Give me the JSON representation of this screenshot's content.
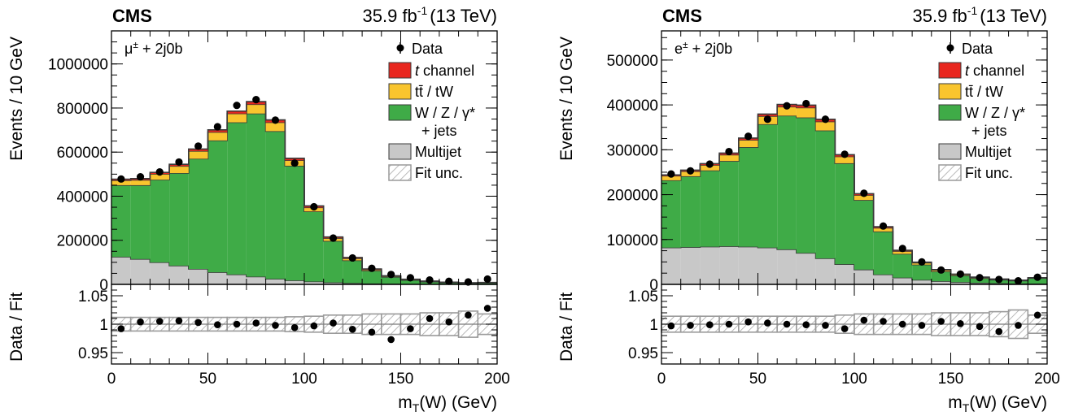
{
  "colors": {
    "data": "#000000",
    "t_channel": "#e8261e",
    "ttbar_tW": "#f9c52e",
    "wz": "#3fab47",
    "multijet": "#c8c8c8",
    "fit_unc": "#9a9a9a",
    "outline": "#3a3a3a"
  },
  "panels": [
    {
      "experiment": "CMS",
      "lumi": "35.9 fb",
      "lumi_sup": "-1",
      "energy": "(13 TeV)",
      "region_label": "μ",
      "region_sup": "±",
      "region_suffix": " + 2j0b",
      "legend": {
        "data": "Data",
        "t_channel_italic": "t",
        "t_channel_rest": " channel",
        "ttbar": "tt̄ / tW",
        "wz_line1": "W / Z / γ*",
        "wz_line2": "+ jets",
        "multijet": "Multijet",
        "fit_unc": "Fit unc."
      },
      "ylabel": "Events / 10 GeV",
      "ratio_ylabel": "Data / Fit",
      "xlabel_main": "m",
      "xlabel_sub": "T",
      "xlabel_rest": "(W) (GeV)",
      "xticks": [
        "0",
        "50",
        "100",
        "150",
        "200"
      ],
      "yticks": [
        "0",
        "200000",
        "400000",
        "600000",
        "800000",
        "1000000"
      ],
      "ratio_yticks": [
        "0.95",
        "1",
        "1.05"
      ]
    },
    {
      "experiment": "CMS",
      "lumi": "35.9 fb",
      "lumi_sup": "-1",
      "energy": "(13 TeV)",
      "region_label": "e",
      "region_sup": "±",
      "region_suffix": " + 2j0b",
      "legend": {
        "data": "Data",
        "t_channel_italic": "t",
        "t_channel_rest": " channel",
        "ttbar": "tt̄ / tW",
        "wz_line1": "W / Z / γ*",
        "wz_line2": "+ jets",
        "multijet": "Multijet",
        "fit_unc": "Fit unc."
      },
      "ylabel": "Events / 10 GeV",
      "ratio_ylabel": "Data / Fit",
      "xlabel_main": "m",
      "xlabel_sub": "T",
      "xlabel_rest": "(W) (GeV)",
      "xticks": [
        "0",
        "50",
        "100",
        "150",
        "200"
      ],
      "yticks": [
        "0",
        "100000",
        "200000",
        "300000",
        "400000",
        "500000"
      ],
      "ratio_yticks": [
        "0.95",
        "1",
        "1.05"
      ]
    }
  ],
  "chart_data": [
    {
      "type": "bar",
      "subtype": "stacked-histogram-with-ratio",
      "xlabel": "mT(W) (GeV)",
      "ylabel": "Events / 10 GeV",
      "xlim": [
        0,
        200
      ],
      "ylim": [
        0,
        1150000
      ],
      "bin_edges": [
        0,
        10,
        20,
        30,
        40,
        50,
        60,
        70,
        80,
        90,
        100,
        110,
        120,
        130,
        140,
        150,
        160,
        170,
        180,
        190,
        200
      ],
      "series": [
        {
          "name": "Multijet",
          "values": [
            125000,
            115000,
            100000,
            85000,
            70000,
            55000,
            45000,
            35000,
            25000,
            18000,
            13000,
            9000,
            6000,
            4000,
            3000,
            2000,
            1500,
            1000,
            800,
            700
          ]
        },
        {
          "name": "W / Z / γ* + jets",
          "values": [
            325000,
            335000,
            375000,
            420000,
            500000,
            598000,
            690000,
            740000,
            670000,
            520000,
            318000,
            188000,
            103000,
            58000,
            31000,
            17500,
            10500,
            6700,
            5000,
            6500
          ]
        },
        {
          "name": "tt̄ / tW",
          "values": [
            22000,
            24000,
            26000,
            32000,
            35000,
            38000,
            40000,
            42000,
            40000,
            25000,
            18000,
            13000,
            9000,
            5000,
            3000,
            2500,
            1800,
            1300,
            1000,
            900
          ]
        },
        {
          "name": "t channel",
          "values": [
            5000,
            6000,
            7000,
            8000,
            9000,
            10000,
            11000,
            12000,
            11000,
            9000,
            7000,
            5000,
            4000,
            3000,
            2000,
            1500,
            1000,
            800,
            600,
            500
          ]
        },
        {
          "name": "Data",
          "values": [
            478000,
            488000,
            510000,
            555000,
            627000,
            715000,
            812000,
            838000,
            745000,
            550000,
            352000,
            210000,
            120000,
            73000,
            45000,
            30000,
            20000,
            14000,
            11000,
            24000
          ]
        }
      ],
      "ratio": {
        "ylabel": "Data / Fit",
        "ylim": [
          0.93,
          1.07
        ],
        "values": [
          0.992,
          1.004,
          1.005,
          1.006,
          1.003,
          0.999,
          1.0,
          1.002,
          0.998,
          0.994,
          0.997,
          1.002,
          0.991,
          0.986,
          0.973,
          0.992,
          1.01,
          1.004,
          1.016,
          1.028
        ],
        "fit_unc": [
          0.012,
          0.012,
          0.012,
          0.012,
          0.012,
          0.012,
          0.012,
          0.012,
          0.012,
          0.013,
          0.014,
          0.016,
          0.016,
          0.018,
          0.018,
          0.018,
          0.02,
          0.02,
          0.023,
          0.018
        ]
      }
    },
    {
      "type": "bar",
      "subtype": "stacked-histogram-with-ratio",
      "xlabel": "mT(W) (GeV)",
      "ylabel": "Events / 10 GeV",
      "xlim": [
        0,
        200
      ],
      "ylim": [
        0,
        565000
      ],
      "bin_edges": [
        0,
        10,
        20,
        30,
        40,
        50,
        60,
        70,
        80,
        90,
        100,
        110,
        120,
        130,
        140,
        150,
        160,
        170,
        180,
        190,
        200
      ],
      "series": [
        {
          "name": "Multijet",
          "values": [
            82000,
            83000,
            84000,
            85000,
            84000,
            82000,
            78000,
            70000,
            58000,
            45000,
            33000,
            22000,
            15000,
            10000,
            7000,
            5000,
            3500,
            2500,
            2000,
            1800
          ]
        },
        {
          "name": "W / Z / γ* + jets",
          "values": [
            150000,
            158000,
            170000,
            190000,
            222000,
            275000,
            298000,
            302000,
            285000,
            225000,
            155000,
            96000,
            53000,
            34000,
            22000,
            15000,
            10500,
            7800,
            6300,
            12000
          ]
        },
        {
          "name": "tt̄ / tW",
          "values": [
            10000,
            11000,
            12000,
            14000,
            16000,
            18000,
            20000,
            22000,
            20000,
            15000,
            11000,
            8000,
            6000,
            4000,
            3000,
            2000,
            1500,
            1000,
            800,
            700
          ]
        },
        {
          "name": "t channel",
          "values": [
            2000,
            2500,
            3000,
            3500,
            4000,
            4500,
            5000,
            5500,
            5000,
            4000,
            3000,
            2500,
            2000,
            1500,
            1000,
            800,
            600,
            500,
            400,
            300
          ]
        },
        {
          "name": "Data",
          "values": [
            246000,
            253000,
            268000,
            296000,
            330000,
            368000,
            398000,
            403000,
            368000,
            290000,
            203000,
            130000,
            80000,
            50000,
            32000,
            23000,
            15000,
            11000,
            8000,
            16000
          ]
        }
      ],
      "ratio": {
        "ylabel": "Data / Fit",
        "ylim": [
          0.93,
          1.07
        ],
        "values": [
          0.997,
          0.998,
          0.999,
          1.0,
          1.004,
          1.002,
          1.0,
          0.999,
          0.998,
          0.992,
          1.007,
          1.005,
          1.0,
          0.998,
          1.005,
          1.001,
          0.996,
          0.987,
          0.998,
          1.016
        ],
        "fit_unc": [
          0.014,
          0.014,
          0.014,
          0.014,
          0.014,
          0.014,
          0.014,
          0.014,
          0.014,
          0.016,
          0.018,
          0.018,
          0.018,
          0.018,
          0.02,
          0.02,
          0.02,
          0.022,
          0.025,
          0.016
        ]
      }
    }
  ]
}
